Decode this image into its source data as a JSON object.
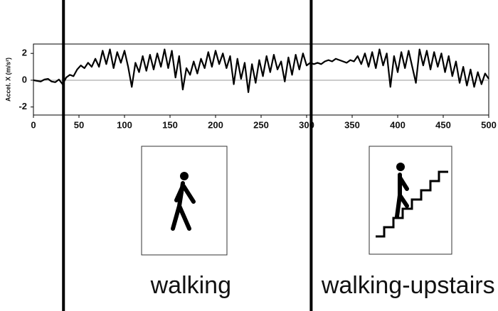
{
  "chart_data": {
    "type": "line",
    "y_label": "Accel. X (m/s²)",
    "x": [
      0,
      4,
      8,
      12,
      16,
      20,
      24,
      28,
      32,
      36,
      40,
      44,
      48,
      52,
      56,
      60,
      64,
      68,
      72,
      76,
      80,
      84,
      88,
      92,
      96,
      100,
      104,
      108,
      112,
      116,
      120,
      124,
      128,
      132,
      136,
      140,
      144,
      148,
      152,
      156,
      160,
      164,
      168,
      172,
      176,
      180,
      184,
      188,
      192,
      196,
      200,
      204,
      208,
      212,
      216,
      220,
      224,
      228,
      232,
      236,
      240,
      244,
      248,
      252,
      256,
      260,
      264,
      268,
      272,
      276,
      280,
      284,
      288,
      292,
      296,
      300,
      304,
      308,
      312,
      316,
      320,
      324,
      328,
      332,
      336,
      340,
      344,
      348,
      352,
      356,
      360,
      364,
      368,
      372,
      376,
      380,
      384,
      388,
      392,
      396,
      400,
      404,
      408,
      412,
      416,
      420,
      424,
      428,
      432,
      436,
      440,
      444,
      448,
      452,
      456,
      460,
      464,
      468,
      472,
      476,
      480,
      484,
      488,
      492,
      496,
      500
    ],
    "series": [
      {
        "color": "#000000",
        "values": [
          0,
          -0.05,
          -0.1,
          0.05,
          0.1,
          -0.1,
          -0.15,
          0.05,
          -0.3,
          0.2,
          0.4,
          0.3,
          0.8,
          1.1,
          0.9,
          1.3,
          1.0,
          1.6,
          1.0,
          2.2,
          1.2,
          2.3,
          0.9,
          2.1,
          1.3,
          2.2,
          1.0,
          -0.5,
          1.3,
          0.6,
          1.8,
          0.7,
          1.9,
          0.8,
          2.0,
          1.0,
          2.3,
          0.9,
          2.2,
          0.2,
          1.8,
          -0.7,
          0.9,
          0.4,
          1.4,
          0.5,
          1.6,
          0.9,
          2.1,
          1.0,
          2.2,
          1.2,
          2.0,
          0.9,
          1.8,
          -0.3,
          1.6,
          0.1,
          1.3,
          -0.9,
          1.2,
          -0.2,
          1.5,
          0.3,
          1.8,
          0.6,
          1.9,
          0.8,
          1.4,
          -0.1,
          1.7,
          0.4,
          1.9,
          0.8,
          2.0,
          1.1,
          1.3,
          1.2,
          1.3,
          1.2,
          1.4,
          1.5,
          1.4,
          1.6,
          1.5,
          1.4,
          1.3,
          1.5,
          1.4,
          1.8,
          1.2,
          2.0,
          1.0,
          2.1,
          0.9,
          2.3,
          1.1,
          2.0,
          -0.5,
          1.8,
          0.6,
          2.1,
          0.9,
          2.2,
          1.0,
          -0.2,
          2.3,
          1.1,
          2.2,
          0.8,
          2.1,
          1.0,
          2.0,
          0.6,
          1.8,
          0.3,
          1.4,
          -0.2,
          1.0,
          -0.4,
          0.8,
          -0.5,
          0.6,
          -0.3,
          0.5,
          0.1
        ]
      }
    ],
    "xlim": [
      0,
      500
    ],
    "xticks": [
      0,
      50,
      100,
      150,
      200,
      250,
      300,
      350,
      400,
      450,
      500
    ],
    "ylim": [
      -2.6,
      2.7
    ],
    "yticks": [
      -2,
      0,
      2
    ],
    "zero_line": true,
    "segments": [
      {
        "start": 33,
        "label": "walking"
      },
      {
        "start": 305,
        "label": "walking-upstairs"
      }
    ]
  }
}
